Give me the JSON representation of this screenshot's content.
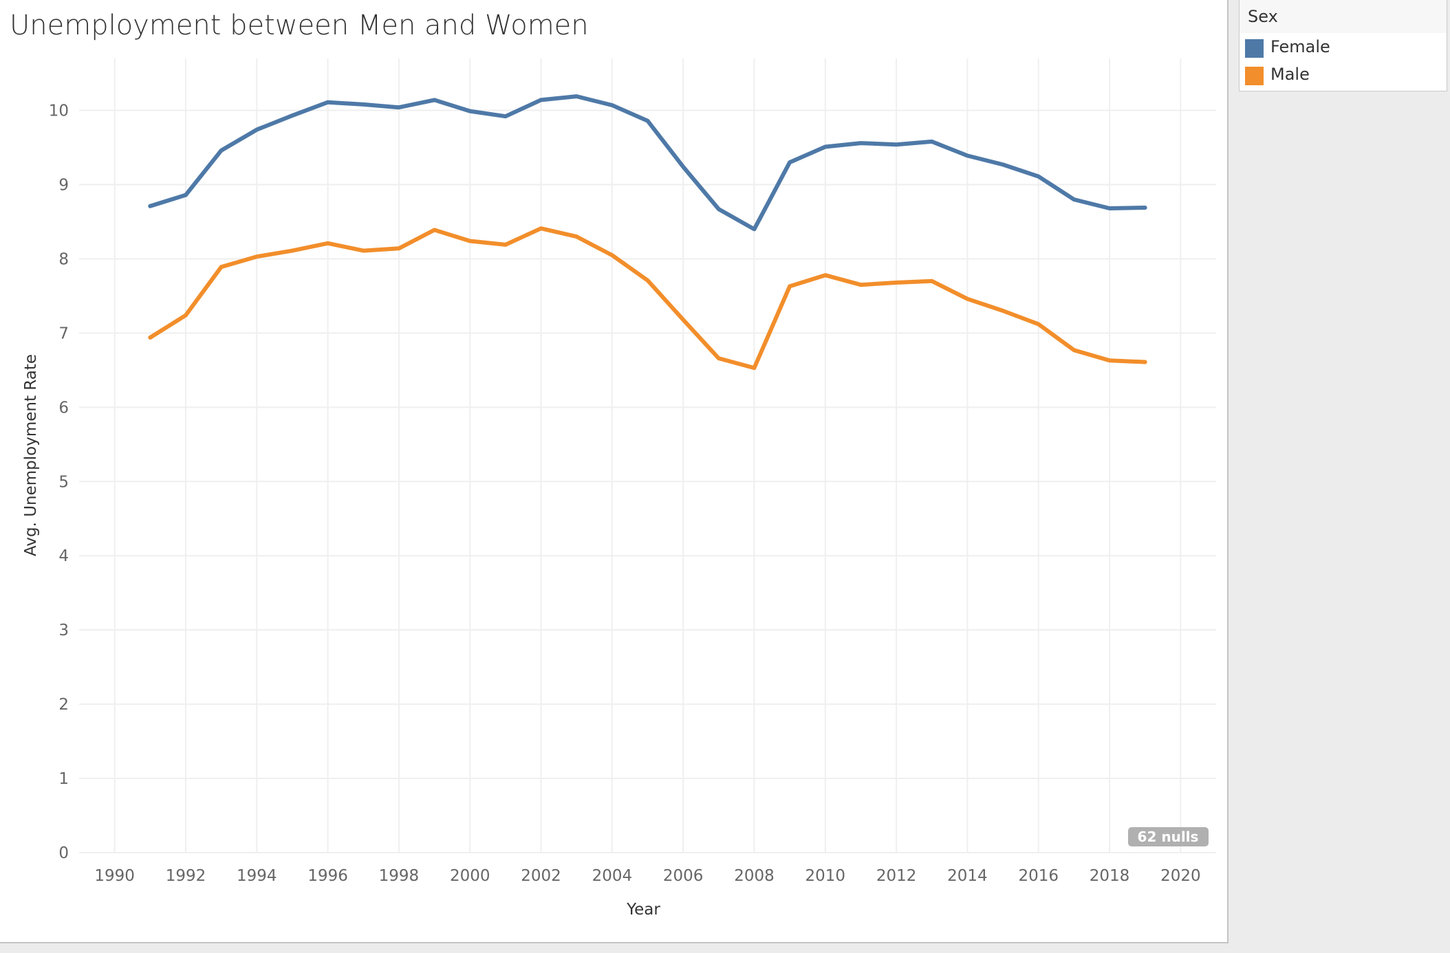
{
  "chart_data": {
    "type": "line",
    "title": "Unemployment between Men and Women",
    "xlabel": "Year",
    "ylabel": "Avg. Unemployment Rate",
    "xlim": [
      1989,
      2021
    ],
    "ylim": [
      0,
      10.7
    ],
    "x_ticks": [
      1990,
      1992,
      1994,
      1996,
      1998,
      2000,
      2002,
      2004,
      2006,
      2008,
      2010,
      2012,
      2014,
      2016,
      2018,
      2020
    ],
    "y_ticks": [
      0,
      1,
      2,
      3,
      4,
      5,
      6,
      7,
      8,
      9,
      10
    ],
    "grid": true,
    "x": [
      1991,
      1992,
      1993,
      1994,
      1995,
      1996,
      1997,
      1998,
      1999,
      2000,
      2001,
      2002,
      2003,
      2004,
      2005,
      2006,
      2007,
      2008,
      2009,
      2010,
      2011,
      2012,
      2013,
      2014,
      2015,
      2016,
      2017,
      2018,
      2019
    ],
    "series": [
      {
        "name": "Female",
        "color": "#4e79a7",
        "values": [
          8.71,
          8.86,
          9.46,
          9.74,
          9.93,
          10.11,
          10.08,
          10.04,
          10.14,
          9.99,
          9.92,
          10.14,
          10.19,
          10.07,
          9.86,
          9.24,
          8.67,
          8.4,
          9.3,
          9.51,
          9.56,
          9.54,
          9.58,
          9.39,
          9.27,
          9.11,
          8.8,
          8.68,
          8.69
        ]
      },
      {
        "name": "Male",
        "color": "#f28e2b",
        "values": [
          6.94,
          7.24,
          7.89,
          8.03,
          8.11,
          8.21,
          8.11,
          8.14,
          8.39,
          8.24,
          8.19,
          8.41,
          8.3,
          8.05,
          7.71,
          7.18,
          6.66,
          6.53,
          7.63,
          7.78,
          7.65,
          7.68,
          7.7,
          7.46,
          7.3,
          7.12,
          6.77,
          6.63,
          6.61
        ]
      }
    ],
    "null_indicator": "62 nulls",
    "legend_position": "right"
  },
  "legend": {
    "title": "Sex",
    "items": [
      {
        "label": "Female",
        "color": "#4e79a7"
      },
      {
        "label": "Male",
        "color": "#f28e2b"
      }
    ]
  }
}
